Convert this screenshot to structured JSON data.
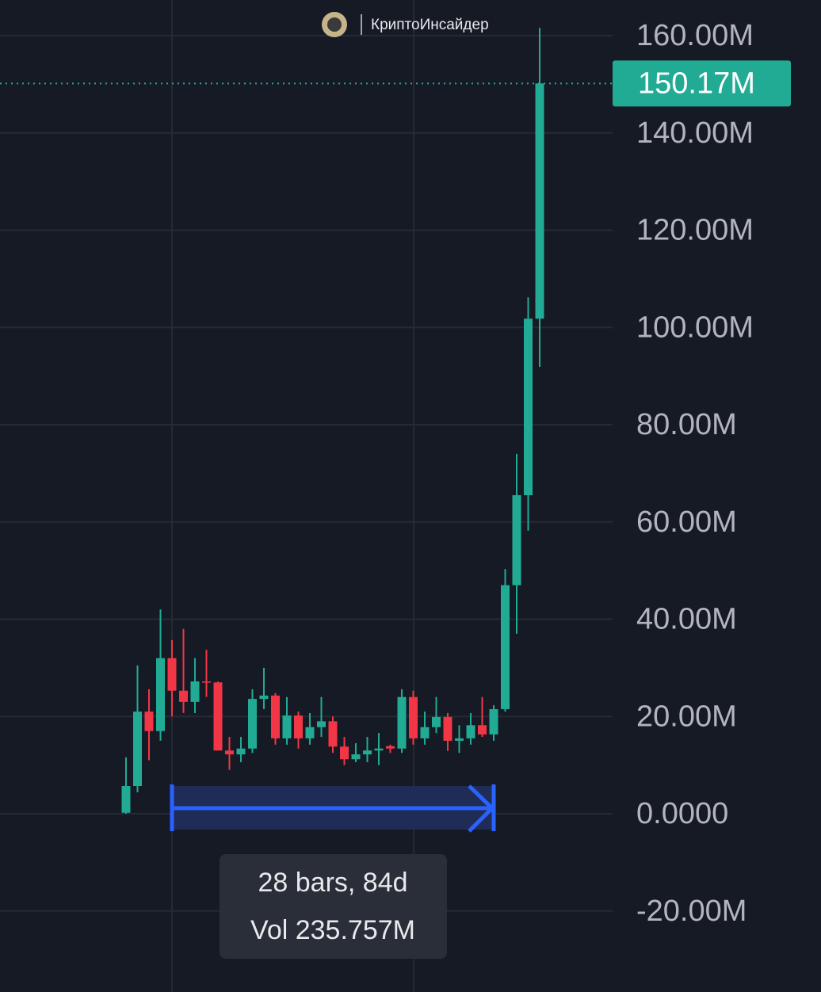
{
  "chart_data": {
    "type": "candlestick",
    "watermark": "КриптоИнсайдер",
    "up_color": "#22ab94",
    "down_color": "#f23645",
    "grid": true,
    "ylim": [
      -36.66,
      167.33
    ],
    "yticks": [
      {
        "value": 160,
        "label": "160.00M"
      },
      {
        "value": 140,
        "label": "140.00M"
      },
      {
        "value": 120,
        "label": "120.00M"
      },
      {
        "value": 100,
        "label": "100.00M"
      },
      {
        "value": 80,
        "label": "80.00M"
      },
      {
        "value": 60,
        "label": "60.00M"
      },
      {
        "value": 40,
        "label": "40.00M"
      },
      {
        "value": 20,
        "label": "20.00M"
      },
      {
        "value": 0,
        "label": "0.0000"
      },
      {
        "value": -20,
        "label": "-20.00M"
      }
    ],
    "last_price": {
      "value": 150.17,
      "label": "150.17M"
    },
    "annotations": [
      "28 bars, 84d",
      "Vol 235.757M"
    ],
    "candles": [
      {
        "open": 0.2,
        "high": 11.6,
        "low": 0,
        "close": 5.7
      },
      {
        "open": 5.7,
        "high": 30.5,
        "low": 4.4,
        "close": 21
      },
      {
        "open": 21,
        "high": 25.6,
        "low": 11,
        "close": 17
      },
      {
        "open": 17,
        "high": 42,
        "low": 15,
        "close": 32
      },
      {
        "open": 32,
        "high": 35.7,
        "low": 20,
        "close": 25.3
      },
      {
        "open": 25.3,
        "high": 38,
        "low": 20.7,
        "close": 23
      },
      {
        "open": 23,
        "high": 32,
        "low": 20.7,
        "close": 27.2
      },
      {
        "open": 27.2,
        "high": 33.7,
        "low": 24,
        "close": 27
      },
      {
        "open": 27,
        "high": 27.2,
        "low": 13,
        "close": 13
      },
      {
        "open": 13,
        "high": 15.8,
        "low": 9,
        "close": 12.2
      },
      {
        "open": 12.2,
        "high": 15.8,
        "low": 10.6,
        "close": 13.4
      },
      {
        "open": 13.4,
        "high": 25.6,
        "low": 12.5,
        "close": 23.6
      },
      {
        "open": 23.6,
        "high": 30,
        "low": 21.5,
        "close": 24.3
      },
      {
        "open": 24.3,
        "high": 24.8,
        "low": 14.2,
        "close": 15.5
      },
      {
        "open": 15.5,
        "high": 24,
        "low": 14.2,
        "close": 20.2
      },
      {
        "open": 20.2,
        "high": 21,
        "low": 13.4,
        "close": 15.5
      },
      {
        "open": 15.5,
        "high": 20.7,
        "low": 14.2,
        "close": 17.8
      },
      {
        "open": 17.8,
        "high": 24,
        "low": 15.8,
        "close": 19
      },
      {
        "open": 19,
        "high": 20,
        "low": 12.5,
        "close": 13.8
      },
      {
        "open": 13.8,
        "high": 15.8,
        "low": 10,
        "close": 11.2
      },
      {
        "open": 11.2,
        "high": 14.5,
        "low": 10.6,
        "close": 12.2
      },
      {
        "open": 12.2,
        "high": 15.8,
        "low": 10.6,
        "close": 13
      },
      {
        "open": 13,
        "high": 16.6,
        "low": 10,
        "close": 13.4
      },
      {
        "open": 13.9,
        "high": 14.2,
        "low": 12.5,
        "close": 13.4
      },
      {
        "open": 13.4,
        "high": 25.6,
        "low": 12.5,
        "close": 24
      },
      {
        "open": 24,
        "high": 25.3,
        "low": 14.2,
        "close": 15.5
      },
      {
        "open": 15.5,
        "high": 21,
        "low": 14.2,
        "close": 17.8
      },
      {
        "open": 17.8,
        "high": 24,
        "low": 16.6,
        "close": 19.9
      },
      {
        "open": 19.9,
        "high": 20.7,
        "low": 12.9,
        "close": 15
      },
      {
        "open": 15,
        "high": 18.2,
        "low": 12.5,
        "close": 15.5
      },
      {
        "open": 15.5,
        "high": 20.7,
        "low": 14.2,
        "close": 18.2
      },
      {
        "open": 18.2,
        "high": 24,
        "low": 15.8,
        "close": 16.3
      },
      {
        "open": 16.3,
        "high": 22.3,
        "low": 15,
        "close": 21.5
      },
      {
        "open": 21.5,
        "high": 50.3,
        "low": 21,
        "close": 47
      },
      {
        "open": 47,
        "high": 74,
        "low": 37,
        "close": 65.5
      },
      {
        "open": 65.5,
        "high": 106.2,
        "low": 58.2,
        "close": 101.8
      },
      {
        "open": 101.8,
        "high": 161.6,
        "low": 91.9,
        "close": 150.17
      }
    ]
  }
}
